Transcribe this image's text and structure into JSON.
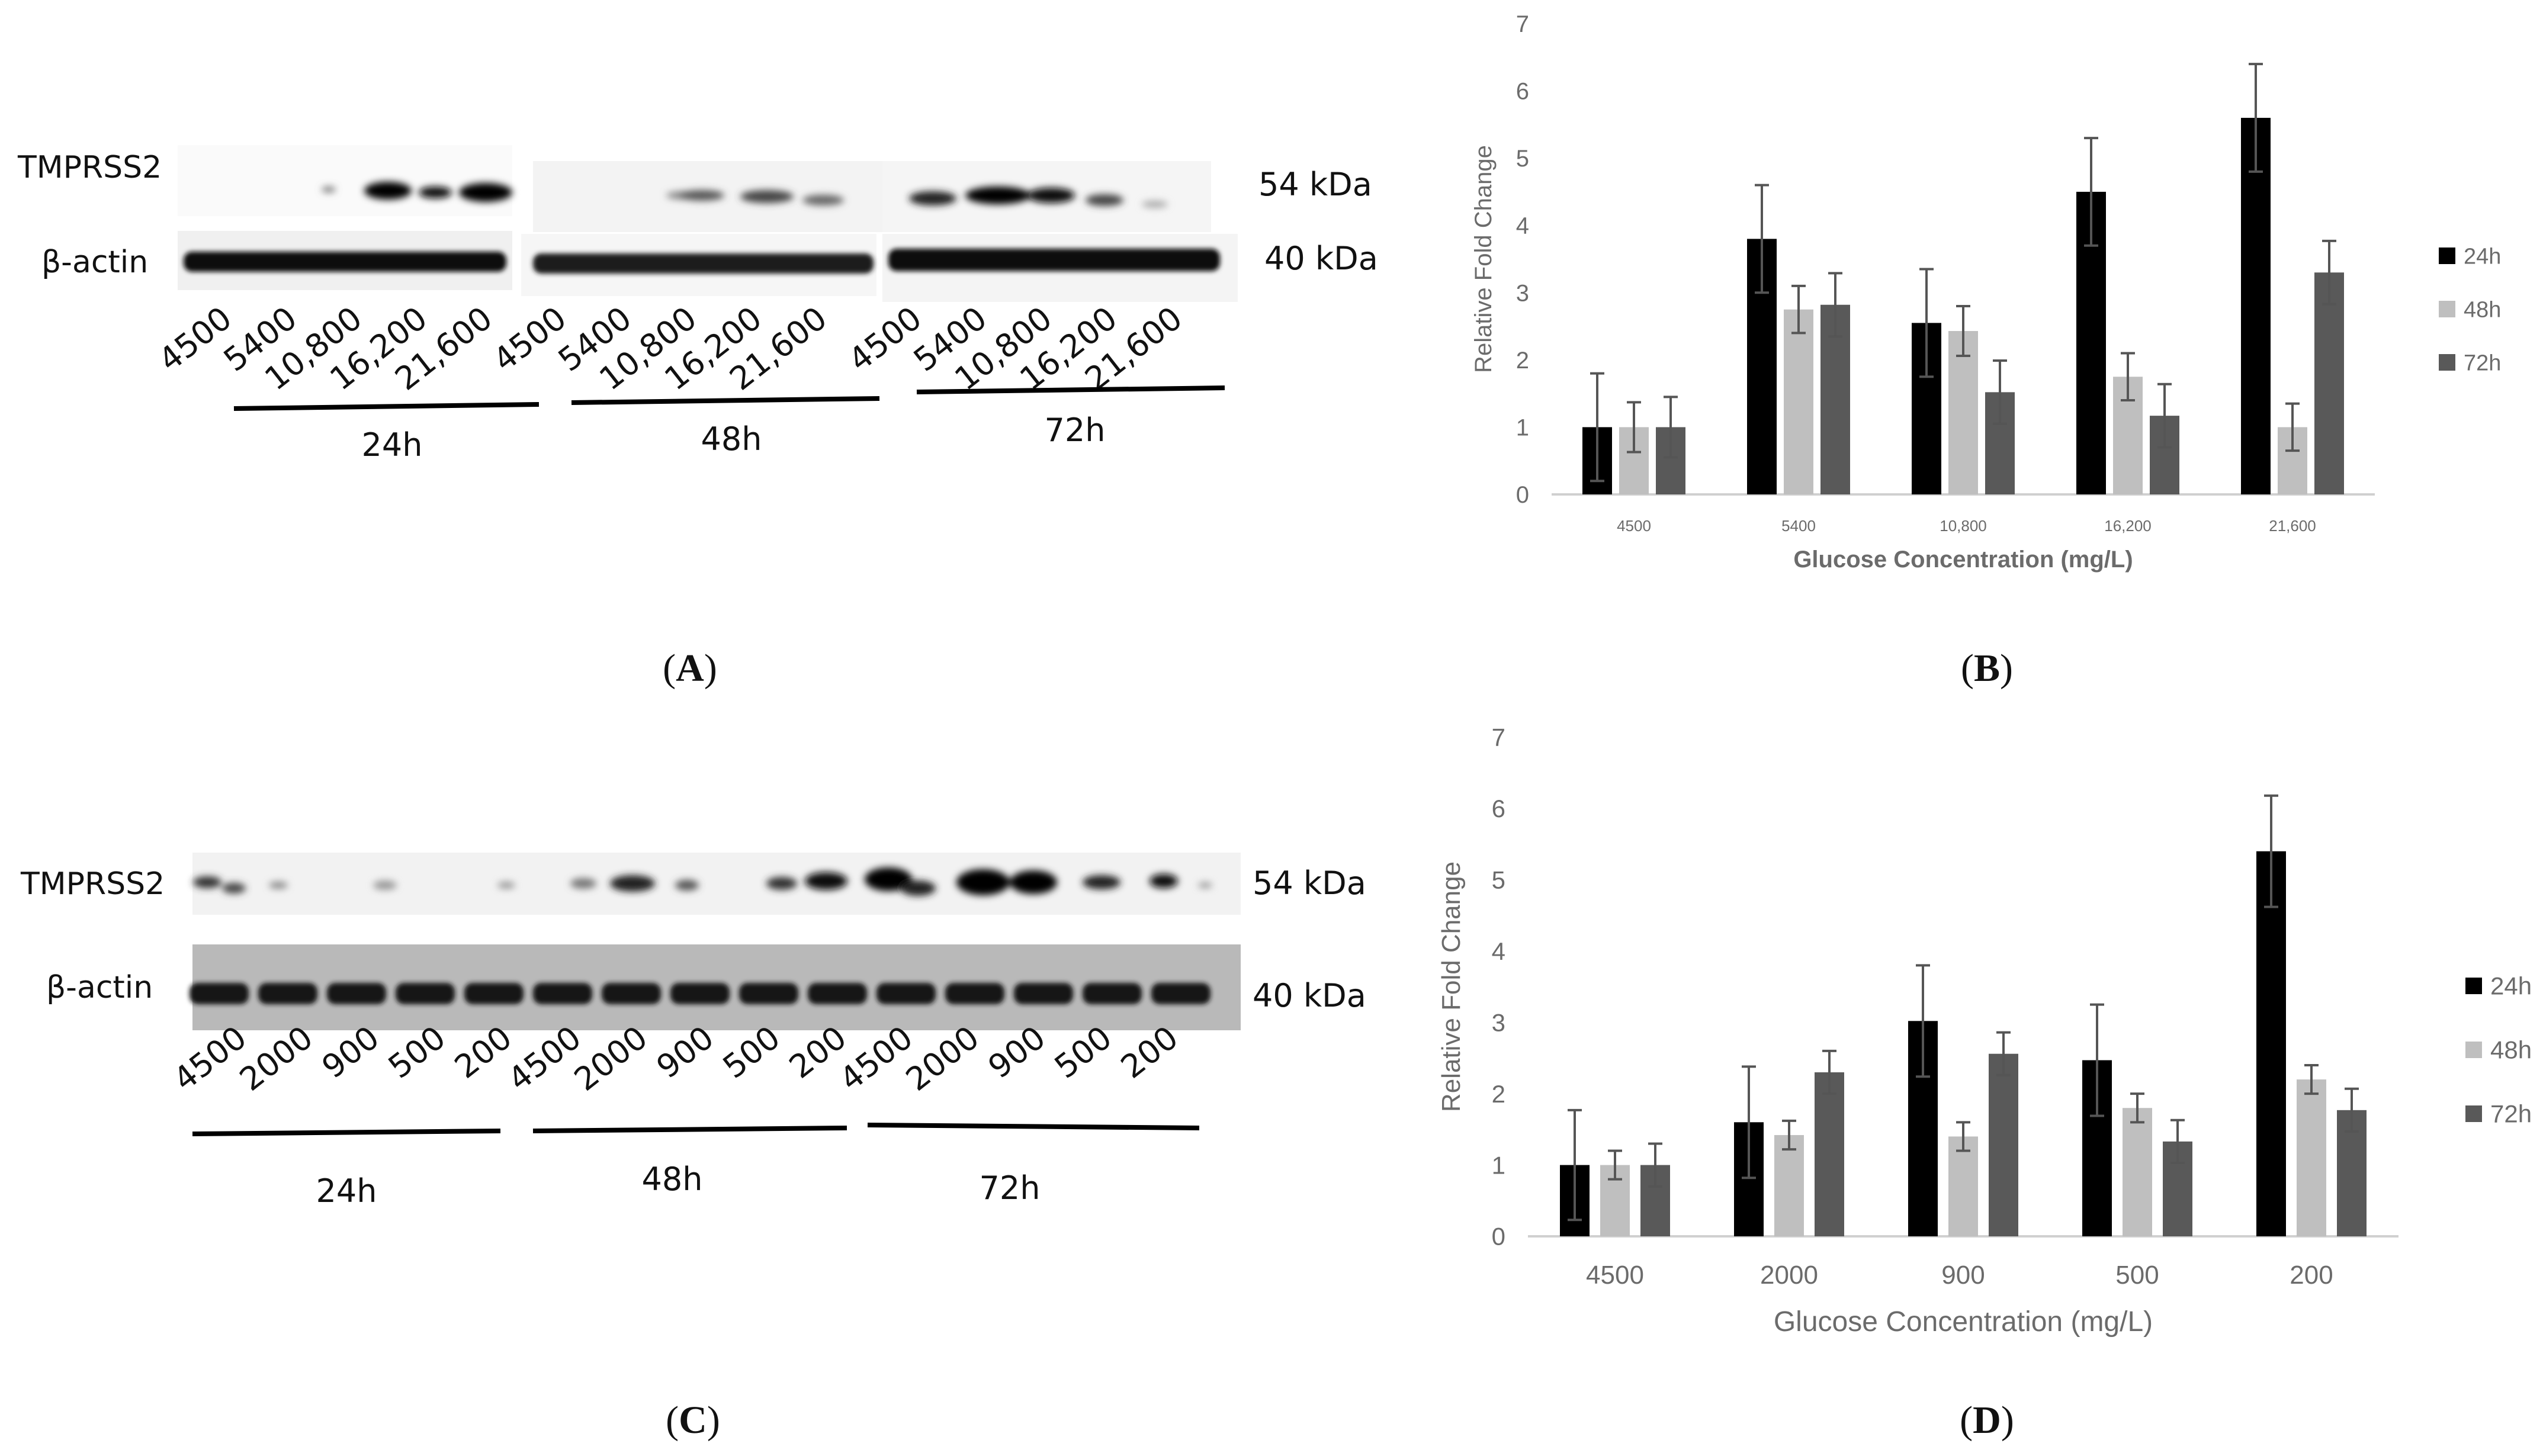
{
  "panels": {
    "A": {
      "caption": "A",
      "protein_label": "TMPRSS2",
      "control_label": "β-actin",
      "mw_protein": "54 kDa",
      "mw_control": "40 kDa",
      "lane_labels": [
        "4500",
        "5400",
        "10,800",
        "16,200",
        "21,600"
      ],
      "groups": [
        "24h",
        "48h",
        "72h"
      ]
    },
    "C": {
      "caption": "C",
      "protein_label": "TMPRSS2",
      "control_label": "β-actin",
      "mw_protein": "54 kDa",
      "mw_control": "40 kDa",
      "lane_labels": [
        "4500",
        "2000",
        "900",
        "500",
        "200"
      ],
      "groups": [
        "24h",
        "48h",
        "72h"
      ]
    },
    "B": {
      "caption": "B"
    },
    "D": {
      "caption": "D"
    }
  },
  "chart_data": [
    {
      "id": "B",
      "type": "bar",
      "title": "",
      "xlabel": "Glucose Concentration (mg/L)",
      "ylabel": "Relative Fold Change",
      "categories": [
        "4500",
        "5400",
        "10,800",
        "16,200",
        "21,600"
      ],
      "ylim": [
        0,
        7
      ],
      "yticks": [
        0,
        1,
        2,
        3,
        4,
        5,
        6,
        7
      ],
      "legend_position": "right",
      "series": [
        {
          "name": "24h",
          "color": "#000000",
          "values": [
            1.0,
            3.8,
            2.55,
            4.5,
            5.6
          ],
          "errors": [
            0.8,
            0.8,
            0.8,
            0.8,
            0.8
          ]
        },
        {
          "name": "48h",
          "color": "#bfbfbf",
          "values": [
            1.0,
            2.75,
            2.43,
            1.75,
            1.0
          ],
          "errors": [
            0.37,
            0.35,
            0.37,
            0.35,
            0.35
          ]
        },
        {
          "name": "72h",
          "color": "#595959",
          "values": [
            1.0,
            2.82,
            1.52,
            1.17,
            3.3
          ],
          "errors": [
            0.45,
            0.47,
            0.47,
            0.47,
            0.47
          ]
        }
      ]
    },
    {
      "id": "D",
      "type": "bar",
      "title": "",
      "xlabel": "Glucose Concentration (mg/L)",
      "ylabel": "Relative Fold Change",
      "categories": [
        "4500",
        "2000",
        "900",
        "500",
        "200"
      ],
      "ylim": [
        0,
        7
      ],
      "yticks": [
        0,
        1,
        2,
        3,
        4,
        5,
        6,
        7
      ],
      "legend_position": "right",
      "series": [
        {
          "name": "24h",
          "color": "#000000",
          "values": [
            1.0,
            1.6,
            3.02,
            2.47,
            5.4
          ],
          "errors": [
            0.77,
            0.78,
            0.78,
            0.78,
            0.78
          ]
        },
        {
          "name": "48h",
          "color": "#bfbfbf",
          "values": [
            1.0,
            1.42,
            1.4,
            1.8,
            2.2
          ],
          "errors": [
            0.2,
            0.2,
            0.2,
            0.2,
            0.2
          ]
        },
        {
          "name": "72h",
          "color": "#595959",
          "values": [
            1.0,
            2.3,
            2.56,
            1.33,
            1.77
          ],
          "errors": [
            0.3,
            0.3,
            0.3,
            0.3,
            0.3
          ]
        }
      ]
    }
  ]
}
